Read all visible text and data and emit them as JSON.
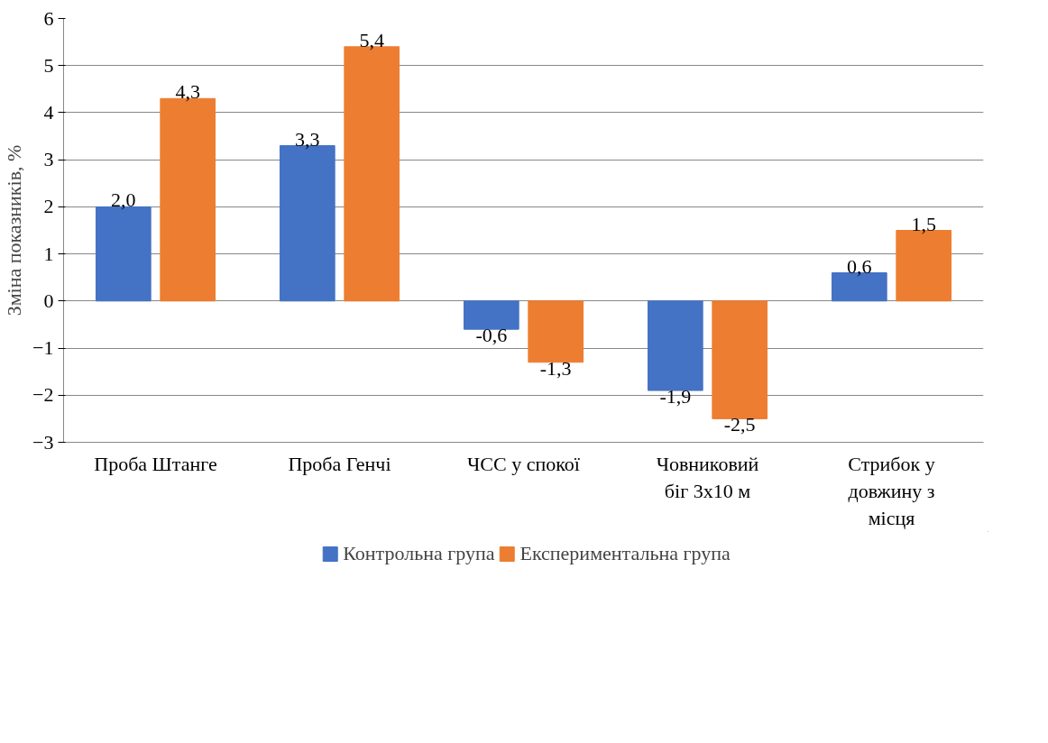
{
  "chart_data": {
    "type": "bar",
    "ylabel": "Зміна показників, %",
    "categories": [
      "Проба Штанге",
      "Проба Генчі",
      "ЧСС у спокої",
      "Човниковий біг 3х10 м",
      "Стрибок у довжину з місця"
    ],
    "series": [
      {
        "name": "Контрольна група",
        "color": "#4472c4",
        "values": [
          2.0,
          3.3,
          -0.6,
          -1.9,
          0.6
        ],
        "value_labels": [
          "2,0",
          "3,3",
          "-0,6",
          "-1,9",
          "0,6"
        ]
      },
      {
        "name": "Експериментальна група",
        "color": "#ed7d31",
        "values": [
          4.3,
          5.4,
          -1.3,
          -2.5,
          1.5
        ],
        "value_labels": [
          "4,3",
          "5,4",
          "-1,3",
          "-2,5",
          "1,5"
        ]
      }
    ],
    "ylim": [
      -3,
      6
    ],
    "yticks": [
      -3,
      -2,
      -1,
      0,
      1,
      2,
      3,
      4,
      5,
      6
    ],
    "grid": "y",
    "legend": "bottom"
  }
}
